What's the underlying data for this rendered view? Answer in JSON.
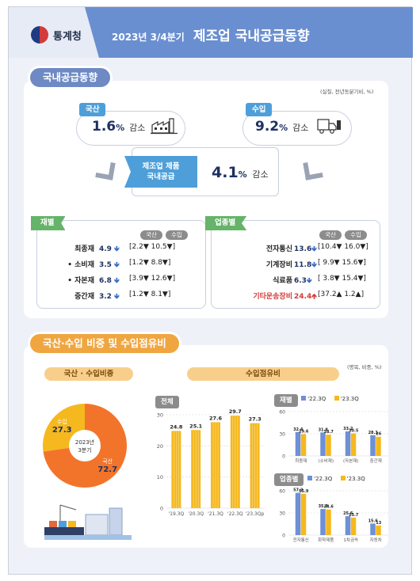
{
  "header": {
    "org": "통계청",
    "period": "2023년 3/4분기",
    "title": "제조업 국내공급동향",
    "logo_colors": [
      "#d43a3a",
      "#1f3b82"
    ]
  },
  "section1": {
    "title": "국내공급동향",
    "note": "(실질, 전년동분기비, %)",
    "domestic": {
      "label": "국산",
      "value": "1.6",
      "unit": "%",
      "direction": "감소"
    },
    "imports": {
      "label": "수입",
      "value": "9.2",
      "unit": "%",
      "direction": "감소"
    },
    "total": {
      "label_line1": "제조업 제품",
      "label_line2": "국내공급",
      "value": "4.1",
      "unit": "%",
      "direction": "감소"
    },
    "by_material": {
      "tag": "재별",
      "col_domestic": "국산",
      "col_import": "수입",
      "rows": [
        {
          "label": "최종재",
          "value": "4.9",
          "detail": "[2.2▼  10.5▼]"
        },
        {
          "label": "• 소비재",
          "value": "3.5",
          "detail": "[1.2▼    8.8▼]"
        },
        {
          "label": "• 자본재",
          "value": "6.8",
          "detail": "[3.9▼  12.6▼]"
        },
        {
          "label": "중간재",
          "value": "3.2",
          "detail": "[1.2▼    8.1▼]"
        }
      ]
    },
    "by_industry": {
      "tag": "업종별",
      "col_domestic": "국산",
      "col_import": "수입",
      "rows": [
        {
          "label": "전자통신",
          "value": "13.6",
          "detail": "[10.4▼  16.0▼]"
        },
        {
          "label": "기계장비",
          "value": "11.8",
          "detail": "[ 9.9▼  15.6▼]"
        },
        {
          "label": "식료품",
          "value": "6.3",
          "detail": "[ 3.8▼  15.4▼]"
        },
        {
          "label": "기타운송장비",
          "value": "24.4",
          "detail": "[37.2▲    1.2▲]"
        }
      ]
    }
  },
  "section2": {
    "title": "국산·수입 비중 및 수입점유비",
    "note": "(명목, 비중, %)",
    "left_title": "국산 · 수입비중",
    "right_title": "수입점유비"
  },
  "chart_data": [
    {
      "type": "pie",
      "title": "",
      "center_label": [
        "2023년",
        "3분기"
      ],
      "slices": [
        {
          "name": "수입",
          "value": 27.3,
          "color": "#f5b81e"
        },
        {
          "name": "국산",
          "value": 72.7,
          "color": "#f2742a"
        }
      ]
    },
    {
      "type": "bar",
      "title": "전체",
      "categories": [
        "'19.3Q",
        "'20.3Q",
        "'21.3Q",
        "'22.3Q",
        "'23.3Qp"
      ],
      "values": [
        24.8,
        25.1,
        27.6,
        29.7,
        27.3
      ],
      "ylim": [
        0,
        30
      ],
      "yticks": [
        0,
        10,
        20,
        30
      ],
      "color": "#f5b81e"
    },
    {
      "type": "bar",
      "title": "재별",
      "legend": [
        "'22.3Q",
        "'23.3Q"
      ],
      "categories": [
        "최종재",
        "(소비재)",
        "(자본재)",
        "중간재"
      ],
      "series": [
        {
          "name": "'22.3Q",
          "values": [
            32.4,
            31.8,
            33.2,
            28.1
          ],
          "color": "#6d90d6"
        },
        {
          "name": "'23.3Q",
          "values": [
            29.6,
            28.7,
            30.5,
            26.0
          ],
          "color": "#f5b81e"
        }
      ],
      "ylim": [
        0,
        60
      ],
      "yticks": [
        0,
        30,
        60
      ]
    },
    {
      "type": "bar",
      "title": "업종별",
      "legend": [
        "'22.3Q",
        "'23.3Q"
      ],
      "categories": [
        "전자통신",
        "화학제품",
        "1차금속",
        "자동차"
      ],
      "series": [
        {
          "name": "'22.3Q",
          "values": [
            57.2,
            35.3,
            25.6,
            15.6
          ],
          "color": "#6d90d6"
        },
        {
          "name": "'23.3Q",
          "values": [
            55.9,
            34.6,
            23.7,
            13.0
          ],
          "color": "#f5b81e"
        }
      ],
      "ylim": [
        0,
        60
      ],
      "yticks": [
        0,
        30,
        60
      ]
    }
  ]
}
